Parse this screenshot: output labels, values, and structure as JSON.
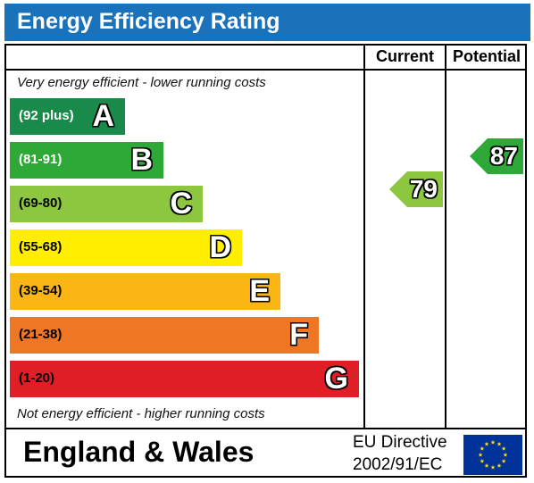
{
  "title": "Energy Efficiency Rating",
  "columns": {
    "current": "Current",
    "potential": "Potential"
  },
  "notes": {
    "top": "Very energy efficient - lower running costs",
    "bottom": "Not energy efficient - higher running costs"
  },
  "bands": [
    {
      "range": "(92 plus)",
      "letter": "A",
      "color": "#1a8a4a",
      "range_color": "#ffffff"
    },
    {
      "range": "(81-91)",
      "letter": "B",
      "color": "#2ea836",
      "range_color": "#ffffff"
    },
    {
      "range": "(69-80)",
      "letter": "C",
      "color": "#8dc63f",
      "range_color": "#000000"
    },
    {
      "range": "(55-68)",
      "letter": "D",
      "color": "#ffee00",
      "range_color": "#000000"
    },
    {
      "range": "(39-54)",
      "letter": "E",
      "color": "#fbb615",
      "range_color": "#000000"
    },
    {
      "range": "(21-38)",
      "letter": "F",
      "color": "#ef7622",
      "range_color": "#000000"
    },
    {
      "range": "(1-20)",
      "letter": "G",
      "color": "#e01e26",
      "range_color": "#000000"
    }
  ],
  "ratings": {
    "current": {
      "value": "79",
      "band": "C",
      "color": "#8dc63f"
    },
    "potential": {
      "value": "87",
      "band": "B",
      "color": "#2ea836"
    }
  },
  "footer": {
    "region": "England & Wales",
    "directive_line1": "EU Directive",
    "directive_line2": "2002/91/EC"
  },
  "colors": {
    "title_bar": "#1a72bb",
    "eu_flag": "#003399",
    "eu_star": "#ffdd00"
  }
}
